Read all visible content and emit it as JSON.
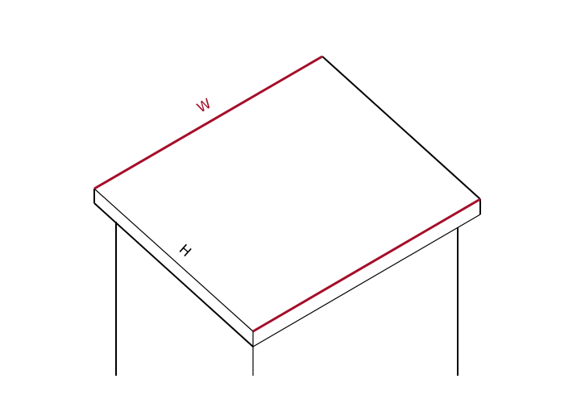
{
  "dimension_labels": {
    "width": "W",
    "height": "H"
  },
  "colors": {
    "highlight_edge": "#a50e2a",
    "outline": "#000000",
    "background": "#ffffff"
  }
}
